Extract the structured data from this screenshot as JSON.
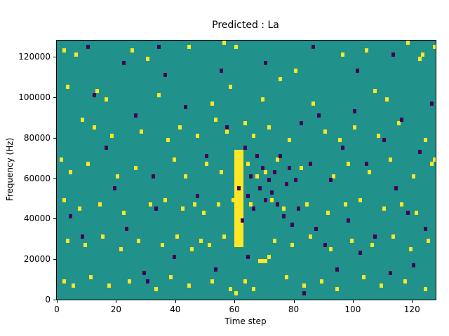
{
  "figure": {
    "title": "Predicted : La"
  },
  "chart_data": {
    "type": "heatmap",
    "title": "Predicted : La",
    "xlabel": "Time step",
    "ylabel": "Frequency (Hz)",
    "xlim": [
      0,
      128
    ],
    "ylim": [
      0,
      128000
    ],
    "x_ticks": [
      0,
      20,
      40,
      60,
      80,
      100,
      120
    ],
    "y_ticks": [
      0,
      20000,
      40000,
      60000,
      80000,
      100000,
      120000
    ],
    "grid": false,
    "legend": "none",
    "colormap": "viridis",
    "colors": {
      "background_mid": "#21918c",
      "high": "#fde725",
      "low": "#440154",
      "axis": "#000000",
      "figure_bg": "#ffffff"
    },
    "n_time_steps": 128,
    "n_freq_bins": 64,
    "freq_bin_hz": 2000,
    "hot_band": {
      "t_min": 60,
      "t_max": 63,
      "f_min": 26000,
      "f_max": 74000
    },
    "high_points": [
      [
        2,
        123000
      ],
      [
        6,
        121000
      ],
      [
        25,
        122000
      ],
      [
        30,
        118000
      ],
      [
        44,
        125000
      ],
      [
        56,
        127000
      ],
      [
        60,
        124000
      ],
      [
        75,
        109000
      ],
      [
        80,
        112000
      ],
      [
        96,
        120000
      ],
      [
        104,
        122000
      ],
      [
        118,
        126000
      ],
      [
        123,
        121000
      ],
      [
        127,
        125000
      ],
      [
        122,
        118000
      ],
      [
        3,
        105000
      ],
      [
        13,
        103000
      ],
      [
        16,
        99000
      ],
      [
        34,
        101000
      ],
      [
        52,
        97000
      ],
      [
        58,
        105000
      ],
      [
        69,
        99000
      ],
      [
        86,
        97000
      ],
      [
        107,
        103000
      ],
      [
        111,
        99000
      ],
      [
        8,
        88000
      ],
      [
        12,
        85000
      ],
      [
        18,
        80000
      ],
      [
        28,
        82000
      ],
      [
        37,
        79000
      ],
      [
        41,
        84000
      ],
      [
        47,
        80000
      ],
      [
        53,
        88000
      ],
      [
        57,
        82000
      ],
      [
        63,
        86000
      ],
      [
        66,
        80000
      ],
      [
        71,
        84000
      ],
      [
        78,
        79000
      ],
      [
        90,
        82000
      ],
      [
        95,
        79000
      ],
      [
        100,
        84000
      ],
      [
        108,
        80000
      ],
      [
        115,
        86000
      ],
      [
        124,
        79000
      ],
      [
        1,
        68000
      ],
      [
        4,
        63000
      ],
      [
        10,
        66000
      ],
      [
        20,
        61000
      ],
      [
        26,
        64000
      ],
      [
        39,
        68000
      ],
      [
        43,
        61000
      ],
      [
        50,
        66000
      ],
      [
        55,
        63000
      ],
      [
        64,
        66000
      ],
      [
        67,
        61000
      ],
      [
        70,
        63000
      ],
      [
        74,
        68000
      ],
      [
        82,
        64000
      ],
      [
        93,
        61000
      ],
      [
        98,
        66000
      ],
      [
        105,
        63000
      ],
      [
        112,
        68000
      ],
      [
        120,
        61000
      ],
      [
        126,
        66000
      ],
      [
        127,
        68000
      ],
      [
        2,
        48000
      ],
      [
        7,
        44000
      ],
      [
        14,
        47000
      ],
      [
        22,
        42000
      ],
      [
        31,
        46000
      ],
      [
        36,
        49000
      ],
      [
        42,
        44000
      ],
      [
        46,
        47000
      ],
      [
        49,
        42000
      ],
      [
        54,
        46000
      ],
      [
        59,
        49000
      ],
      [
        65,
        46000
      ],
      [
        72,
        49000
      ],
      [
        76,
        44000
      ],
      [
        84,
        47000
      ],
      [
        91,
        42000
      ],
      [
        97,
        46000
      ],
      [
        102,
        49000
      ],
      [
        110,
        44000
      ],
      [
        116,
        47000
      ],
      [
        121,
        42000
      ],
      [
        3,
        28000
      ],
      [
        9,
        26000
      ],
      [
        15,
        30000
      ],
      [
        21,
        24000
      ],
      [
        27,
        28000
      ],
      [
        35,
        26000
      ],
      [
        40,
        30000
      ],
      [
        45,
        24000
      ],
      [
        48,
        28000
      ],
      [
        51,
        26000
      ],
      [
        56,
        30000
      ],
      [
        68,
        19000
      ],
      [
        69,
        19000
      ],
      [
        70,
        19000
      ],
      [
        71,
        21000
      ],
      [
        73,
        28000
      ],
      [
        79,
        26000
      ],
      [
        85,
        30000
      ],
      [
        92,
        24000
      ],
      [
        99,
        28000
      ],
      [
        106,
        26000
      ],
      [
        113,
        30000
      ],
      [
        119,
        24000
      ],
      [
        125,
        28000
      ],
      [
        2,
        9000
      ],
      [
        5,
        6000
      ],
      [
        11,
        11000
      ],
      [
        17,
        7000
      ],
      [
        24,
        9000
      ],
      [
        33,
        5000
      ],
      [
        38,
        11000
      ],
      [
        44,
        7000
      ],
      [
        52,
        9000
      ],
      [
        58,
        5000
      ],
      [
        60,
        3000
      ],
      [
        63,
        9000
      ],
      [
        66,
        5000
      ],
      [
        77,
        11000
      ],
      [
        83,
        7000
      ],
      [
        89,
        9000
      ],
      [
        94,
        5000
      ],
      [
        103,
        11000
      ],
      [
        109,
        7000
      ],
      [
        117,
        9000
      ],
      [
        124,
        5000
      ]
    ],
    "low_points": [
      [
        4,
        40000
      ],
      [
        8,
        30000
      ],
      [
        12,
        100000
      ],
      [
        16,
        75000
      ],
      [
        19,
        55000
      ],
      [
        23,
        35000
      ],
      [
        26,
        90000
      ],
      [
        29,
        12000
      ],
      [
        32,
        60000
      ],
      [
        36,
        110000
      ],
      [
        39,
        20000
      ],
      [
        43,
        95000
      ],
      [
        47,
        50000
      ],
      [
        50,
        70000
      ],
      [
        53,
        15000
      ],
      [
        57,
        85000
      ],
      [
        63,
        75000
      ],
      [
        64,
        50000
      ],
      [
        65,
        60000
      ],
      [
        66,
        45000
      ],
      [
        67,
        70000
      ],
      [
        68,
        55000
      ],
      [
        69,
        65000
      ],
      [
        70,
        48000
      ],
      [
        71,
        58000
      ],
      [
        72,
        52000
      ],
      [
        73,
        62000
      ],
      [
        74,
        46000
      ],
      [
        75,
        70000
      ],
      [
        76,
        40000
      ],
      [
        77,
        56000
      ],
      [
        78,
        64000
      ],
      [
        79,
        36000
      ],
      [
        80,
        58000
      ],
      [
        81,
        44000
      ],
      [
        82,
        86000
      ],
      [
        83,
        2000
      ],
      [
        85,
        66000
      ],
      [
        87,
        34000
      ],
      [
        88,
        90000
      ],
      [
        90,
        26000
      ],
      [
        92,
        58000
      ],
      [
        94,
        14000
      ],
      [
        96,
        74000
      ],
      [
        98,
        38000
      ],
      [
        100,
        92000
      ],
      [
        102,
        22000
      ],
      [
        104,
        66000
      ],
      [
        107,
        30000
      ],
      [
        110,
        78000
      ],
      [
        112,
        12000
      ],
      [
        114,
        54000
      ],
      [
        116,
        88000
      ],
      [
        118,
        42000
      ],
      [
        120,
        16000
      ],
      [
        122,
        72000
      ],
      [
        124,
        34000
      ],
      [
        126,
        96000
      ],
      [
        10,
        124000
      ],
      [
        22,
        116000
      ],
      [
        34,
        124000
      ],
      [
        55,
        112000
      ],
      [
        70,
        116000
      ],
      [
        86,
        124000
      ],
      [
        101,
        112000
      ],
      [
        113,
        120000
      ],
      [
        30,
        8000
      ],
      [
        64,
        20000
      ],
      [
        33,
        45000
      ],
      [
        61,
        55000
      ],
      [
        62,
        38000
      ]
    ]
  }
}
